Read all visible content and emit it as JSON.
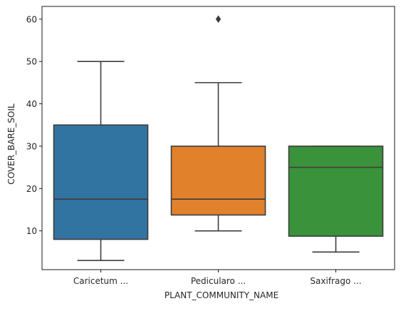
{
  "chart_data": {
    "type": "box",
    "title": "",
    "xlabel": "PLANT_COMMUNITY_NAME",
    "ylabel": "COVER_BARE_SOIL",
    "ylim": [
      0.85,
      63.0
    ],
    "yticks": [
      10,
      20,
      30,
      40,
      50,
      60
    ],
    "grid": false,
    "legend": "none",
    "categories": [
      "Caricetum ...",
      "Pedicularo ...",
      "Saxifrago ..."
    ],
    "boxes": [
      {
        "category": "Caricetum ...",
        "whisker_low": 3,
        "q1": 8,
        "median": 17.5,
        "q3": 35,
        "whisker_high": 50,
        "outliers": [],
        "color": "#3274a1"
      },
      {
        "category": "Pedicularo ...",
        "whisker_low": 10,
        "q1": 13.75,
        "median": 17.5,
        "q3": 30,
        "whisker_high": 45,
        "outliers": [
          60
        ],
        "color": "#e1812c"
      },
      {
        "category": "Saxifrago ...",
        "whisker_low": 5,
        "q1": 8.75,
        "median": 25,
        "q3": 30,
        "whisker_high": 30,
        "outliers": [],
        "color": "#3a923a"
      }
    ],
    "line_color": "#3d3d3d"
  }
}
